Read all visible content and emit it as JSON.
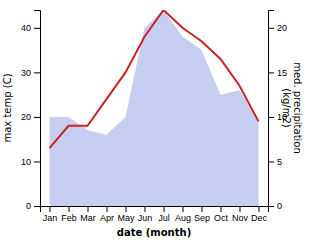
{
  "chart_data": {
    "type": "line",
    "categories": [
      "Jan",
      "Feb",
      "Mar",
      "Apr",
      "May",
      "Jun",
      "Jul",
      "Aug",
      "Sep",
      "Oct",
      "Nov",
      "Dec"
    ],
    "series": [
      {
        "type": "area",
        "color": "#c5cef0",
        "axis": "y2",
        "values": [
          10,
          10,
          8.5,
          8,
          10,
          20,
          22,
          19,
          17.5,
          12.5,
          13,
          9.5
        ]
      },
      {
        "type": "line",
        "color": "#cc2222",
        "values": [
          13,
          18,
          18,
          24,
          30,
          38,
          44,
          40,
          37,
          33,
          27,
          19
        ]
      }
    ],
    "xlabel": "date (month)",
    "ylabel": "max temp (C)",
    "y2label": "med. precipitation\n(kg/m2)",
    "ylim": [
      0,
      44
    ],
    "yticks": [
      0,
      10,
      20,
      30,
      40
    ],
    "y2lim": [
      0,
      22
    ],
    "y2ticks": [
      0,
      5,
      10,
      15,
      20
    ],
    "grid": false
  }
}
